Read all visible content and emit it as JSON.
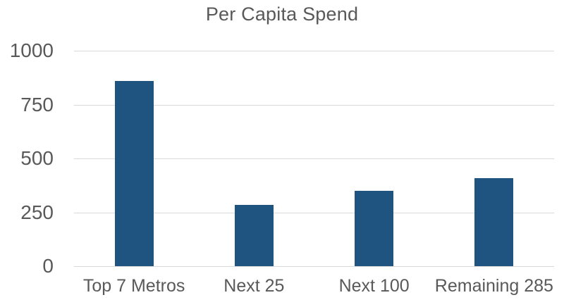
{
  "chart_data": {
    "type": "bar",
    "title": "Per Capita Spend",
    "categories": [
      "Top 7 Metros",
      "Next 25",
      "Next 100",
      "Remaining 285"
    ],
    "values": [
      860,
      285,
      350,
      410
    ],
    "xlabel": "",
    "ylabel": "",
    "ylim": [
      0,
      1000
    ],
    "yticks": [
      0,
      250,
      500,
      750,
      1000
    ],
    "grid": "horizontal",
    "legend_position": "none",
    "bar_color": "#205480",
    "gridline_color": "#D9D9D9",
    "text_color": "#595959",
    "background_color": "#FFFFFF"
  }
}
